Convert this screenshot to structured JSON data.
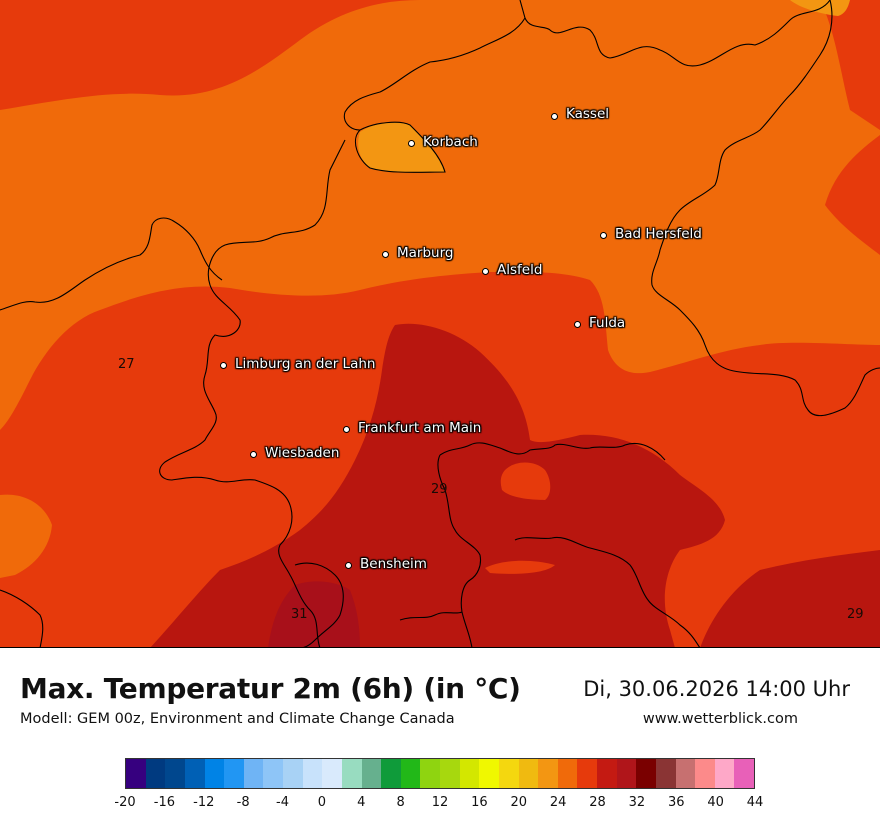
{
  "title": "Max. Temperatur 2m (6h) (in °C)",
  "subtitle": "Modell: GEM 00z, Environment and Climate Change Canada",
  "datetime": "Di, 30.06.2026 14:00 Uhr",
  "site": "www.wetterblick.com",
  "cities": [
    {
      "name": "Kassel"
    },
    {
      "name": "Korbach"
    },
    {
      "name": "Bad Hersfeld"
    },
    {
      "name": "Marburg"
    },
    {
      "name": "Alsfeld"
    },
    {
      "name": "Fulda"
    },
    {
      "name": "Limburg an der Lahn"
    },
    {
      "name": "Frankfurt am Main"
    },
    {
      "name": "Wiesbaden"
    },
    {
      "name": "Bensheim"
    }
  ],
  "contour_labels": [
    "27",
    "29",
    "31",
    "29"
  ],
  "legend": {
    "tick_labels": [
      "-20",
      "-16",
      "-12",
      "-8",
      "-4",
      "0",
      "4",
      "8",
      "12",
      "16",
      "20",
      "24",
      "28",
      "32",
      "36",
      "40",
      "44"
    ],
    "colors": [
      "#36007f",
      "#003a80",
      "#00478e",
      "#0060b5",
      "#0083e6",
      "#2196f3",
      "#6fb4f5",
      "#8ec5f7",
      "#a8d2f5",
      "#c8e2fb",
      "#d9eafc",
      "#98dcc0",
      "#66b08e",
      "#0f9b3a",
      "#22b818",
      "#8fd410",
      "#a7d80e",
      "#d3e700",
      "#f0f800",
      "#f4d70f",
      "#f0ba10",
      "#f39612",
      "#f06a0a",
      "#e63a0c",
      "#c41a12",
      "#b0151a",
      "#7a0000",
      "#8a3434",
      "#c77070",
      "#fc8a8a",
      "#fea8c8",
      "#e860b8"
    ]
  },
  "field_colors": {
    "c24": "#f39612",
    "c26": "#f06a0a",
    "c28": "#e63a0c",
    "c30": "#b8160f",
    "c32": "#a8101a"
  }
}
